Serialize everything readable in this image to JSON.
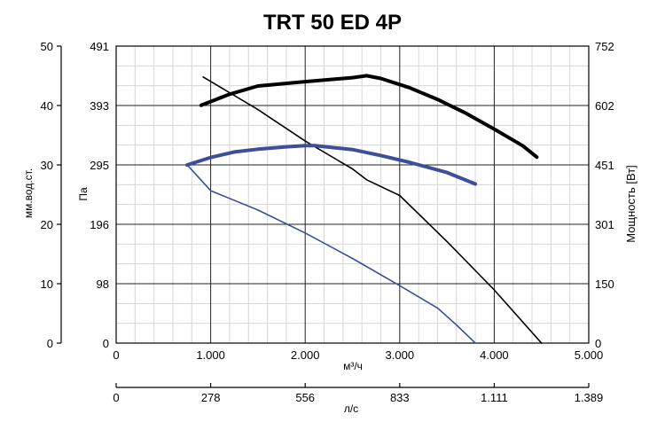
{
  "chart_data": {
    "type": "line",
    "title": "TRT 50 ED 4P",
    "x": {
      "label": "м³/ч",
      "ticks": [
        0,
        1000,
        2000,
        3000,
        4000,
        5000
      ],
      "tick_labels": [
        "0",
        "1.000",
        "2.000",
        "3.000",
        "4.000",
        "5.000"
      ],
      "range": [
        0,
        5000
      ]
    },
    "x2": {
      "label": "л/с",
      "tick_labels": [
        "0",
        "278",
        "556",
        "833",
        "1.111",
        "1.389"
      ]
    },
    "y_left_outer": {
      "label": "мм.вод.ст.",
      "tick_labels": [
        "0",
        "10",
        "20",
        "30",
        "40",
        "50"
      ]
    },
    "y_left": {
      "label": "Па",
      "tick_labels": [
        "0",
        "98",
        "196",
        "295",
        "393",
        "491"
      ],
      "range": [
        0,
        491
      ]
    },
    "y_right": {
      "label": "Мощность [Вт]",
      "tick_labels": [
        "0",
        "150",
        "301",
        "451",
        "602",
        "752"
      ],
      "range": [
        0,
        752
      ]
    },
    "grid": true,
    "series": [
      {
        "color": "#000000",
        "style": "thick",
        "axis": "right",
        "x": [
          900,
          1200,
          1500,
          2000,
          2500,
          2650,
          2800,
          3100,
          3400,
          3700,
          4000,
          4300,
          4450
        ],
        "y": [
          602,
          630,
          651,
          662,
          672,
          677,
          670,
          647,
          617,
          582,
          542,
          500,
          471
        ]
      },
      {
        "color": "#000000",
        "style": "thin",
        "axis": "left",
        "x": [
          920,
          1500,
          2000,
          2500,
          2650,
          3000,
          3500,
          4000,
          4500
        ],
        "y": [
          440,
          386,
          334,
          288,
          270,
          244,
          168,
          88,
          0
        ]
      },
      {
        "color": "#3d4e9a",
        "style": "thick",
        "axis": "right",
        "x": [
          750,
          1000,
          1250,
          1500,
          1800,
          2000,
          2100,
          2500,
          2800,
          3100,
          3500,
          3800
        ],
        "y": [
          451,
          470,
          484,
          491,
          497,
          500,
          500,
          490,
          475,
          458,
          432,
          403
        ]
      },
      {
        "color": "#3d4e9a",
        "style": "thin",
        "axis": "left",
        "x": [
          750,
          1000,
          1500,
          2000,
          2500,
          3000,
          3400,
          3600,
          3800
        ],
        "y": [
          295,
          252,
          220,
          182,
          140,
          95,
          58,
          30,
          0
        ]
      }
    ]
  }
}
